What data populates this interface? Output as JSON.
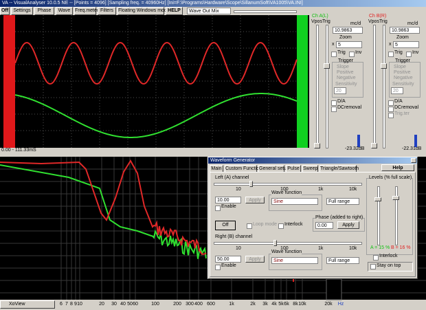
{
  "window": {
    "title": "VA -- VisualAnalyser 10.0.5 NE -- [Points = 4096] [Sampling freq. = 40960Hz] [Ini=F:\\Programs\\Hardware\\Scope\\SillanumSoft\\VA1005\\VA.INI]"
  },
  "menu": {
    "items": [
      "Off",
      "Settings",
      "Phase",
      "Wave",
      "Freq.meter",
      "Filters",
      "Floating Windows mode",
      "HELP"
    ],
    "dropdown": "Wave Out Mix"
  },
  "scope": {
    "time_range": "0.00 - 111.33mS"
  },
  "channel_a": {
    "title": "Ch A(L)",
    "vpos": "Vpos",
    "trig": "Trig",
    "units": "mc/d",
    "scale": "10.9863",
    "zoom_label": "Zoom",
    "zoom_x": "x",
    "zoom": "5",
    "trig_check": "Trig",
    "inv": "Inv",
    "trigger": "Trigger",
    "slope": "Slope",
    "positive": "Positive",
    "negative": "Negative",
    "sensitivity": "Sensitivity",
    "sens_value": "20",
    "da": "D/A",
    "dcremoval": "DCremoval",
    "level": "-23.32dB"
  },
  "channel_b": {
    "title": "Ch B(R)",
    "vpos": "Vpos",
    "trig": "Trig",
    "units": "mc/d",
    "scale": "10.9863",
    "zoom_label": "Zoom",
    "zoom_x": "x",
    "zoom": "5",
    "trig_check": "Trig",
    "inv": "Inv",
    "trigger": "Trigger",
    "slope": "Slope",
    "positive": "Positive",
    "negative": "Negative",
    "sensitivity": "Sensitivity",
    "sens_value": "20",
    "da": "D/A",
    "dcremoval": "DCremoval",
    "trig_ter": "Trig.ter",
    "level": "-22.31dB"
  },
  "spectrum": {
    "freq_labels": [
      "6",
      "7",
      "8",
      "9",
      "10",
      "20",
      "30",
      "40",
      "50",
      "60",
      "100",
      "200",
      "300",
      "400",
      "600",
      "1k",
      "2k",
      "3k",
      "4k",
      "5k",
      "6k",
      "8k",
      "10k",
      "20k",
      "Hz"
    ]
  },
  "taskbar": {
    "app": "XoView"
  },
  "generator": {
    "title": "Waveform Generator",
    "tabs": [
      "Main",
      "Custom Function",
      "General setup",
      "Pulse",
      "Sweep",
      "Triangle/Sawtooth"
    ],
    "help": "Help",
    "left": {
      "label": "Left (A) channel",
      "ticks": [
        "10",
        "100",
        "1k",
        "10k"
      ],
      "freq": "10.00",
      "apply": "Apply",
      "enable": "Enable",
      "wave_function": "Wave function",
      "wave": "Sine",
      "range": "Full range"
    },
    "off": "Off",
    "loop_mode": "Loop mode",
    "interlock": "Interlock",
    "phase": {
      "label": "Phase (added to right)",
      "value": "0.00",
      "apply": "Apply"
    },
    "right": {
      "label": "Right (B) channel",
      "ticks": [
        "10",
        "100",
        "1k",
        "10k"
      ],
      "freq": "50.00",
      "apply": "Apply",
      "enable": "Enable",
      "wave_function": "Wave function",
      "wave": "Sine",
      "range": "Full range"
    },
    "levels": {
      "label": "Levels (% full scale)",
      "a": "A = 15 %",
      "b": "B = 16 %",
      "interlock": "Interlock",
      "stay_on_top": "Stay on top"
    }
  }
}
